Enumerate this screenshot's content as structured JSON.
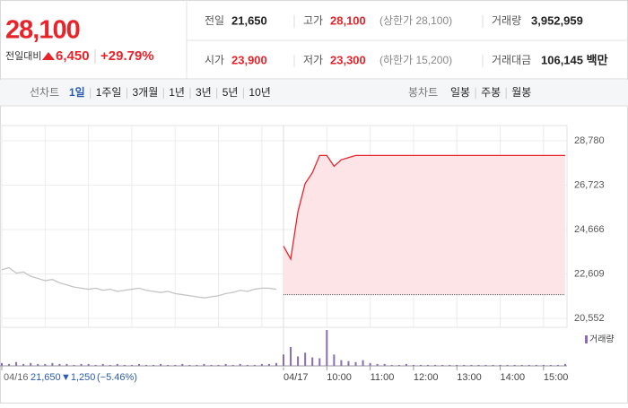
{
  "header": {
    "price": "28,100",
    "change_label": "전일대비",
    "change": "6,450",
    "rate": "+29.79%",
    "stats": [
      [
        {
          "label": "전일",
          "value": "21,650"
        },
        {
          "label": "고가",
          "value": "28,100",
          "note": "(상한가 28,100)"
        },
        {
          "label": "거래량",
          "value": "3,952,959"
        }
      ],
      [
        {
          "label": "시가",
          "value": "23,900"
        },
        {
          "label": "저가",
          "value": "23,300",
          "note": "(하한가 15,200)"
        },
        {
          "label": "거래대금",
          "value": "106,145 백만"
        }
      ]
    ]
  },
  "tabs": {
    "line_label": "선차트",
    "line": [
      "1일",
      "1주일",
      "3개월",
      "1년",
      "3년",
      "5년",
      "10년"
    ],
    "selected": 0,
    "candle_label": "봉차트",
    "candle": [
      "일봉",
      "주봉",
      "월봉"
    ]
  },
  "previous_day": {
    "date": "04/16",
    "close": "21,650",
    "change": "▼1,250",
    "rate": "(−5.46%)"
  },
  "chart_data": {
    "type": "line",
    "categories": [
      "04/16",
      null,
      null,
      null,
      null,
      null,
      null,
      null,
      null,
      null,
      null,
      null,
      null,
      null,
      null,
      null,
      null,
      null,
      null,
      null,
      null,
      null,
      null,
      null,
      null,
      null,
      null,
      null,
      null,
      null,
      null,
      null,
      null,
      null,
      null,
      null,
      null,
      null,
      null,
      "04/17",
      null,
      null,
      null,
      null,
      null,
      "10:00",
      null,
      null,
      null,
      null,
      null,
      "11:00",
      null,
      null,
      null,
      null,
      null,
      "12:00",
      null,
      null,
      null,
      null,
      null,
      "13:00",
      null,
      null,
      null,
      null,
      null,
      "14:00",
      null,
      null,
      null,
      null,
      null,
      "15:00",
      null,
      null,
      null
    ],
    "series": [
      {
        "color": "#c4c4c4",
        "values": [
          22800,
          22900,
          22650,
          22700,
          22500,
          22400,
          22300,
          22350,
          22200,
          22100,
          22000,
          21950,
          21900,
          21950,
          21850,
          21900,
          21800,
          21850,
          21900,
          21950,
          21850,
          21800,
          21750,
          21800,
          21700,
          21650,
          21600,
          21550,
          21500,
          21550,
          21600,
          21700,
          21750,
          21850,
          21800,
          21900,
          21950,
          21950,
          21900,
          null,
          null,
          null,
          null,
          null,
          null,
          null,
          null,
          null,
          null,
          null,
          null,
          null,
          null,
          null,
          null,
          null,
          null,
          null,
          null,
          null,
          null,
          null,
          null,
          null,
          null,
          null,
          null,
          null,
          null,
          null,
          null,
          null,
          null,
          null,
          null,
          null,
          null,
          null,
          null
        ]
      },
      {
        "color": "#e8242b",
        "fill": "#fde4e7",
        "values": [
          null,
          null,
          null,
          null,
          null,
          null,
          null,
          null,
          null,
          null,
          null,
          null,
          null,
          null,
          null,
          null,
          null,
          null,
          null,
          null,
          null,
          null,
          null,
          null,
          null,
          null,
          null,
          null,
          null,
          null,
          null,
          null,
          null,
          null,
          null,
          null,
          null,
          null,
          null,
          23900,
          23300,
          25500,
          26800,
          27300,
          28100,
          28100,
          27600,
          27900,
          28000,
          28100,
          28100,
          28100,
          28100,
          28100,
          28100,
          28100,
          28100,
          28100,
          28100,
          28100,
          28100,
          28100,
          28100,
          28100,
          28100,
          28100,
          28100,
          28100,
          28100,
          28100,
          28100,
          28100,
          28100,
          28100,
          28100,
          28100,
          28100,
          28100,
          28100
        ]
      }
    ],
    "baseline": 21650,
    "ylim": [
      20552,
      28780
    ],
    "yticks": [
      {
        "value": 20552,
        "label": "20,552"
      },
      {
        "value": 22609,
        "label": "22,609"
      },
      {
        "value": 24666,
        "label": "24,666"
      },
      {
        "value": 26723,
        "label": "26,723"
      },
      {
        "value": 28780,
        "label": "28,780"
      }
    ],
    "grid": true,
    "volume": {
      "name": "거래량",
      "color": "#8a6bb8",
      "values": [
        3,
        2,
        4,
        2,
        3,
        2,
        2,
        3,
        2,
        2,
        1,
        2,
        2,
        1,
        2,
        1,
        2,
        1,
        1,
        2,
        1,
        1,
        2,
        1,
        1,
        2,
        1,
        1,
        2,
        1,
        1,
        2,
        1,
        2,
        1,
        1,
        2,
        2,
        3,
        12,
        20,
        10,
        14,
        9,
        8,
        38,
        12,
        6,
        5,
        4,
        6,
        3,
        2,
        2,
        1,
        1,
        2,
        1,
        1,
        1,
        1,
        1,
        1,
        1,
        1,
        1,
        1,
        1,
        1,
        1,
        1,
        1,
        1,
        1,
        1,
        1,
        1,
        1,
        2
      ]
    }
  }
}
